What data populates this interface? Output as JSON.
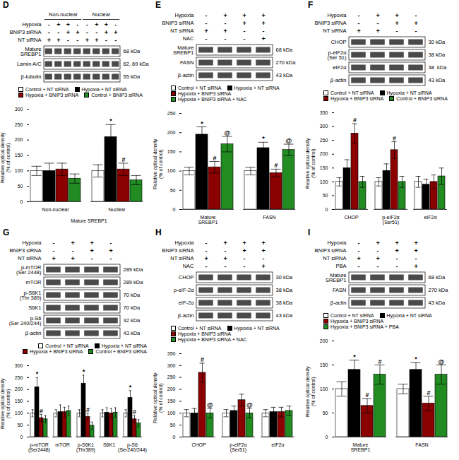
{
  "chart_data": [
    {
      "type": "blot",
      "title": "D",
      "headers": [
        "Non-nuclear",
        "Nuclear"
      ],
      "conditions": [
        {
          "name": "Hypoxia",
          "signs": [
            "-",
            "+",
            "+",
            "-",
            "-",
            "+",
            "+",
            "-"
          ]
        },
        {
          "name": "BNIP3 siRNA",
          "signs": [
            "-",
            "-",
            "+",
            "+",
            "-",
            "-",
            "+",
            "+"
          ]
        },
        {
          "name": "NT siRNA",
          "signs": [
            "+",
            "+",
            "-",
            "-",
            "+",
            "+",
            "-",
            "-"
          ]
        }
      ],
      "proteins": [
        "Mature\nSREBP1",
        "Lamin A/C",
        "β-tubulin"
      ],
      "kda": [
        "68 kDa",
        "62, 69 kDa",
        "55 kDa"
      ]
    },
    {
      "type": "bar",
      "categories": [
        "Non-nuclear",
        "Nuclear"
      ],
      "xlabel": "Mature SREBP1",
      "ylabel": "Relative optical density\n(% of control)",
      "ylim": [
        0,
        300
      ],
      "yticks": [
        0,
        50,
        100,
        150,
        200,
        250,
        300
      ],
      "grid": false,
      "legend": "upper left",
      "series": [
        {
          "name": "Control + NT siRNA",
          "color": "white",
          "values": [
            100,
            100
          ],
          "errors": [
            15,
            20
          ],
          "annotations": [
            null,
            null
          ]
        },
        {
          "name": "Hypoxia + NT siRNA",
          "color": "black",
          "values": [
            100,
            210
          ],
          "errors": [
            25,
            40
          ],
          "annotations": [
            null,
            "*"
          ]
        },
        {
          "name": "Hypoxia + BNIP3 siRNA",
          "color": "darkred",
          "values": [
            105,
            105
          ],
          "errors": [
            20,
            20
          ],
          "annotations": [
            null,
            "#"
          ]
        },
        {
          "name": "Control + BNIP3 siRNA",
          "color": "#228B22",
          "values": [
            75,
            70
          ],
          "errors": [
            15,
            15
          ],
          "annotations": [
            null,
            null
          ]
        }
      ]
    },
    {
      "type": "blot",
      "title": "E",
      "conditions": [
        {
          "name": "Hypoxia",
          "signs": [
            "-",
            "+",
            "+",
            "+"
          ]
        },
        {
          "name": "BNIP3 siRNA",
          "signs": [
            "-",
            "-",
            "+",
            "+"
          ]
        },
        {
          "name": "NT siRNA",
          "signs": [
            "+",
            "+",
            "-",
            "-"
          ]
        },
        {
          "name": "NAC",
          "signs": [
            "-",
            "-",
            "-",
            "+"
          ]
        }
      ],
      "proteins": [
        "Mature\nSREBP1",
        "FASN",
        "β-actin"
      ],
      "kda": [
        "68 kDa",
        "270 kDa",
        "43 kDa"
      ]
    },
    {
      "type": "bar",
      "categories": [
        "Mature\nSREBP1",
        "FASN"
      ],
      "ylabel": "Relative optical density\n(% of control)",
      "ylim": [
        0,
        250
      ],
      "yticks": [
        0,
        50,
        100,
        150,
        200,
        250
      ],
      "grid": false,
      "legend": "upper left",
      "series": [
        {
          "name": "Control + NT siRNA",
          "color": "white",
          "values": [
            100,
            100
          ],
          "errors": [
            10,
            10
          ],
          "annotations": [
            null,
            null
          ]
        },
        {
          "name": "Hypoxia + NT siRNA",
          "color": "black",
          "values": [
            195,
            160
          ],
          "errors": [
            20,
            15
          ],
          "annotations": [
            "*",
            "*"
          ]
        },
        {
          "name": "Hypoxia + BNIP3 siRNA",
          "color": "darkred",
          "values": [
            110,
            95
          ],
          "errors": [
            15,
            10
          ],
          "annotations": [
            "#",
            "#"
          ]
        },
        {
          "name": "Hypoxia + BNIP3 siRNA + NAC",
          "color": "#228B22",
          "values": [
            170,
            155
          ],
          "errors": [
            20,
            15
          ],
          "annotations": [
            "@",
            "@"
          ]
        }
      ]
    },
    {
      "type": "blot",
      "title": "F",
      "conditions": [
        {
          "name": "Hypoxia",
          "signs": [
            "-",
            "+",
            "+",
            "-"
          ]
        },
        {
          "name": "BNIP3 siRNA",
          "signs": [
            "-",
            "-",
            "+",
            "+"
          ]
        },
        {
          "name": "NT siRNA",
          "signs": [
            "+",
            "+",
            "-",
            "-"
          ]
        }
      ],
      "proteins": [
        "CHOP",
        "p-eIF2α\n(Ser 51)",
        "eIF2α",
        "β-actin"
      ],
      "kda": [
        "30 kDa",
        "38 kDa",
        "38  kDa",
        "43 kDa"
      ]
    },
    {
      "type": "bar",
      "categories": [
        "CHOP",
        "p-eIF2α\n(Ser51)",
        "eIF2α"
      ],
      "ylabel": "Relative optical density\n(% of control)",
      "ylim": [
        0,
        350
      ],
      "yticks": [
        0,
        50,
        100,
        150,
        200,
        250,
        300,
        350
      ],
      "grid": false,
      "legend": "upper left",
      "series": [
        {
          "name": "Control + NT siRNA",
          "color": "white",
          "values": [
            100,
            100,
            100
          ],
          "errors": [
            15,
            15,
            20
          ],
          "annotations": [
            null,
            null,
            null
          ]
        },
        {
          "name": "Hypoxia + NT siRNA",
          "color": "black",
          "values": [
            150,
            140,
            90
          ],
          "errors": [
            30,
            25,
            20
          ],
          "annotations": [
            null,
            null,
            null
          ]
        },
        {
          "name": "Hypoxia + BNIP3 siRNA",
          "color": "darkred",
          "values": [
            275,
            215,
            100
          ],
          "errors": [
            35,
            30,
            25
          ],
          "annotations": [
            "#",
            "#",
            null
          ]
        },
        {
          "name": "Control + BNIP3 siRNA",
          "color": "#228B22",
          "values": [
            100,
            100,
            120
          ],
          "errors": [
            20,
            20,
            30
          ],
          "annotations": [
            null,
            null,
            null
          ]
        }
      ]
    },
    {
      "type": "blot",
      "title": "G",
      "conditions": [
        {
          "name": "Hypoxia",
          "signs": [
            "-",
            "+",
            "+",
            "-"
          ]
        },
        {
          "name": "BNIP3 siRNA",
          "signs": [
            "-",
            "-",
            "+",
            "+"
          ]
        },
        {
          "name": "NT siRNA",
          "signs": [
            "+",
            "+",
            "-",
            "-"
          ]
        }
      ],
      "proteins": [
        "p-mTOR\n(Ser 2448)",
        "mTOR",
        "p-S6K1\n(Thr 389)",
        "S6K1",
        "p-S6\n(Ser 240/244)",
        "β-actin"
      ],
      "kda": [
        "289 kDa",
        "289 kDa",
        "70 kDa",
        "70 kDa",
        "32 kDa",
        "43 kDa"
      ]
    },
    {
      "type": "bar",
      "categories": [
        "p-mTOR\n(Ser2448)",
        "mTOR",
        "p-S6K1\n(Thr389)",
        "S6K1",
        "p-S6\n(Ser240/244)"
      ],
      "ylabel": "Relative optical density\n(% of control)",
      "ylim": [
        0,
        300
      ],
      "yticks": [
        0,
        50,
        100,
        150,
        200,
        250,
        300
      ],
      "grid": false,
      "legend": "upper right",
      "series": [
        {
          "name": "Control + NT siRNA",
          "color": "white",
          "values": [
            100,
            100,
            100,
            100,
            100
          ],
          "errors": [
            15,
            15,
            15,
            15,
            15
          ],
          "annotations": [
            null,
            null,
            null,
            null,
            null
          ]
        },
        {
          "name": "Hypoxia + NT siRNA",
          "color": "black",
          "values": [
            210,
            105,
            225,
            103,
            165
          ],
          "errors": [
            40,
            30,
            35,
            20,
            30
          ],
          "annotations": [
            "*",
            null,
            "*",
            null,
            "*"
          ]
        },
        {
          "name": "Hypoxia + BNIP3 siRNA",
          "color": "darkred",
          "values": [
            80,
            105,
            85,
            100,
            75
          ],
          "errors": [
            15,
            20,
            15,
            20,
            15
          ],
          "annotations": [
            "#",
            null,
            "#",
            null,
            "#"
          ]
        },
        {
          "name": "Control + BNIP3 siRNA",
          "color": "#228B22",
          "values": [
            75,
            110,
            48,
            103,
            58
          ],
          "errors": [
            15,
            20,
            15,
            20,
            15
          ],
          "annotations": [
            null,
            null,
            null,
            null,
            null
          ]
        }
      ]
    },
    {
      "type": "blot",
      "title": "H",
      "conditions": [
        {
          "name": "Hypoxia",
          "signs": [
            "-",
            "+",
            "+",
            "+"
          ]
        },
        {
          "name": "BNIP3 siRNA",
          "signs": [
            "-",
            "-",
            "+",
            "+"
          ]
        },
        {
          "name": "NT siRNA",
          "signs": [
            "+",
            "+",
            "-",
            "-"
          ]
        },
        {
          "name": "NAC",
          "signs": [
            "-",
            "-",
            "-",
            "+"
          ]
        }
      ],
      "proteins": [
        "CHOP",
        "p-eIF-2α",
        "eIF-2α",
        "β-actin"
      ],
      "kda": [
        "30 kDa",
        "38 kDa",
        "38 kDa",
        "43 kDa"
      ]
    },
    {
      "type": "bar",
      "categories": [
        "CHOP",
        "p-eIF2α\n(Ser51)",
        "eIF2α"
      ],
      "ylabel": "Relative optical density\n(% of control)",
      "ylim": [
        0,
        350
      ],
      "yticks": [
        0,
        50,
        100,
        150,
        200,
        250,
        300,
        350
      ],
      "grid": false,
      "legend": "upper left",
      "series": [
        {
          "name": "Control + NT siRNA",
          "color": "white",
          "values": [
            100,
            100,
            100
          ],
          "errors": [
            15,
            15,
            15
          ],
          "annotations": [
            null,
            null,
            null
          ]
        },
        {
          "name": "Hypoxia + NT siRNA",
          "color": "black",
          "values": [
            100,
            110,
            105
          ],
          "errors": [
            20,
            20,
            20
          ],
          "annotations": [
            null,
            null,
            null
          ]
        },
        {
          "name": "Hypoxia + BNIP3 siRNA",
          "color": "darkred",
          "values": [
            270,
            155,
            105
          ],
          "errors": [
            40,
            25,
            20
          ],
          "annotations": [
            "#",
            null,
            null
          ]
        },
        {
          "name": "Hypoxia + BNIP3 siRNA + NAC",
          "color": "#228B22",
          "values": [
            100,
            100,
            110
          ],
          "errors": [
            20,
            20,
            20
          ],
          "annotations": [
            "@",
            "@",
            null
          ]
        }
      ]
    },
    {
      "type": "blot",
      "title": "I",
      "conditions": [
        {
          "name": "Hypoxia",
          "signs": [
            "-",
            "+",
            "+",
            "+"
          ]
        },
        {
          "name": "BNIP3 siRNA",
          "signs": [
            "-",
            "-",
            "+",
            "+"
          ]
        },
        {
          "name": "NT siRNA",
          "signs": [
            "+",
            "+",
            "-",
            "-"
          ]
        },
        {
          "name": "PBA",
          "signs": [
            "-",
            "-",
            "-",
            "+"
          ]
        }
      ],
      "proteins": [
        "Mature\nSREBP1",
        "FASN",
        "β-actin"
      ],
      "kda": [
        "68 kDa",
        "270 kDa",
        "43 kDa"
      ]
    },
    {
      "type": "bar",
      "categories": [
        "Mature\nSREBP1",
        "FASN"
      ],
      "ylabel": "Relative optical density\n(% of control)",
      "ylim": [
        0,
        200
      ],
      "yticks": [
        0,
        50,
        100,
        150,
        200
      ],
      "grid": false,
      "legend": "upper left",
      "series": [
        {
          "name": "Control + NT siRNA",
          "color": "white",
          "values": [
            100,
            100
          ],
          "errors": [
            15,
            10
          ],
          "annotations": [
            null,
            null
          ]
        },
        {
          "name": "Hypoxia + NT siRNA",
          "color": "black",
          "values": [
            140,
            140
          ],
          "errors": [
            20,
            15
          ],
          "annotations": [
            "*",
            "*"
          ]
        },
        {
          "name": "Hypoxia + BNIP3 siRNA",
          "color": "darkred",
          "values": [
            65,
            70
          ],
          "errors": [
            15,
            15
          ],
          "annotations": [
            "#",
            "#"
          ]
        },
        {
          "name": "Hypoxia + BNIP3 siRNA + PBA",
          "color": "#228B22",
          "values": [
            130,
            130
          ],
          "errors": [
            20,
            20
          ],
          "annotations": [
            "#",
            "@"
          ]
        }
      ]
    }
  ]
}
